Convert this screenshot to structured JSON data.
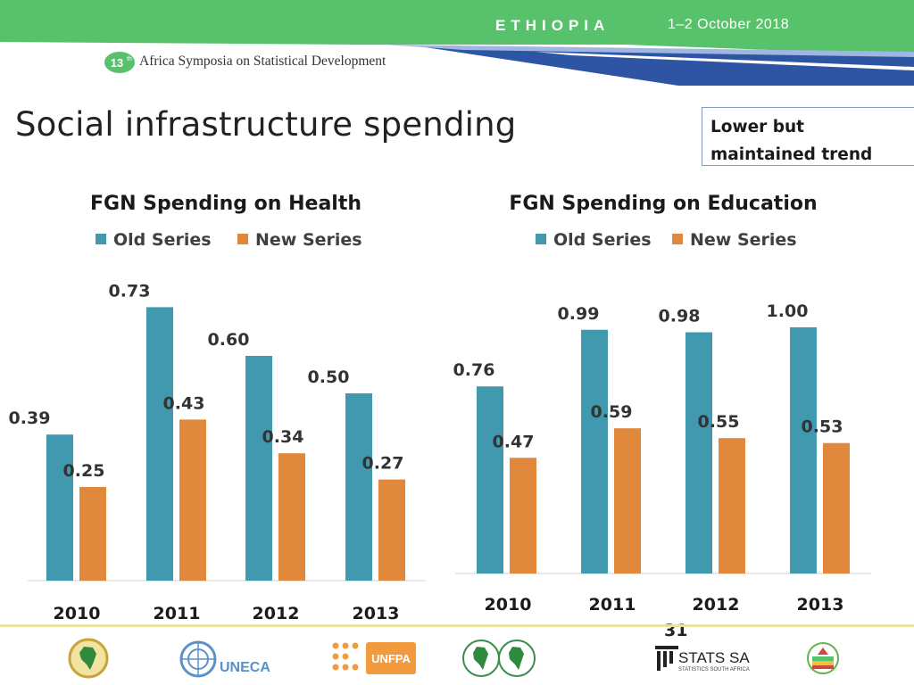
{
  "header": {
    "country": "ETHIOPIA",
    "dates": "1–2 October 2018",
    "symposium_number": "13",
    "symposium_suffix": "th",
    "symposium": "Africa Symposia on Statistical Development"
  },
  "slide": {
    "title": "Social infrastructure spending",
    "callout": "Lower but maintained trend",
    "page_number": "31"
  },
  "colors": {
    "old_series": "#4199b0",
    "new_series": "#e0893d",
    "header_green": "#57c26b",
    "header_blue": "#2e54a4"
  },
  "footer_logos": [
    {
      "name": "au-emblem"
    },
    {
      "name": "uneca",
      "text": "UNECA"
    },
    {
      "name": "unfpa",
      "text": "UNFPA"
    },
    {
      "name": "sadc-emblems"
    },
    {
      "name": "stats-sa",
      "text": "STATS SA",
      "subtext": "STATISTICS SOUTH AFRICA"
    },
    {
      "name": "ethiopia-emblem"
    }
  ],
  "chart_data": [
    {
      "type": "bar",
      "title": "FGN Spending on Health",
      "categories": [
        "2010",
        "2011",
        "2012",
        "2013"
      ],
      "series": [
        {
          "name": "Old Series",
          "values": [
            0.39,
            0.73,
            0.6,
            0.5
          ],
          "labels": [
            "0.39",
            "0.73",
            "0.60",
            "0.50"
          ]
        },
        {
          "name": "New Series",
          "values": [
            0.25,
            0.43,
            0.34,
            0.27
          ],
          "labels": [
            "0.25",
            "0.43",
            "0.34",
            "0.27"
          ]
        }
      ],
      "xlabel": "",
      "ylabel": "",
      "ylim": [
        0,
        0.9
      ],
      "grid": false,
      "legend": "top"
    },
    {
      "type": "bar",
      "title": "FGN Spending on Education",
      "categories": [
        "2010",
        "2011",
        "2012",
        "2013"
      ],
      "series": [
        {
          "name": "Old Series",
          "values": [
            0.76,
            0.99,
            0.98,
            1.0
          ],
          "labels": [
            "0.76",
            "0.99",
            "0.98",
            "1.00"
          ]
        },
        {
          "name": "New Series",
          "values": [
            0.47,
            0.59,
            0.55,
            0.53
          ],
          "labels": [
            "0.47",
            "0.59",
            "0.55",
            "0.53"
          ]
        }
      ],
      "xlabel": "",
      "ylabel": "",
      "ylim": [
        0,
        1.2
      ],
      "grid": false,
      "legend": "top"
    }
  ]
}
